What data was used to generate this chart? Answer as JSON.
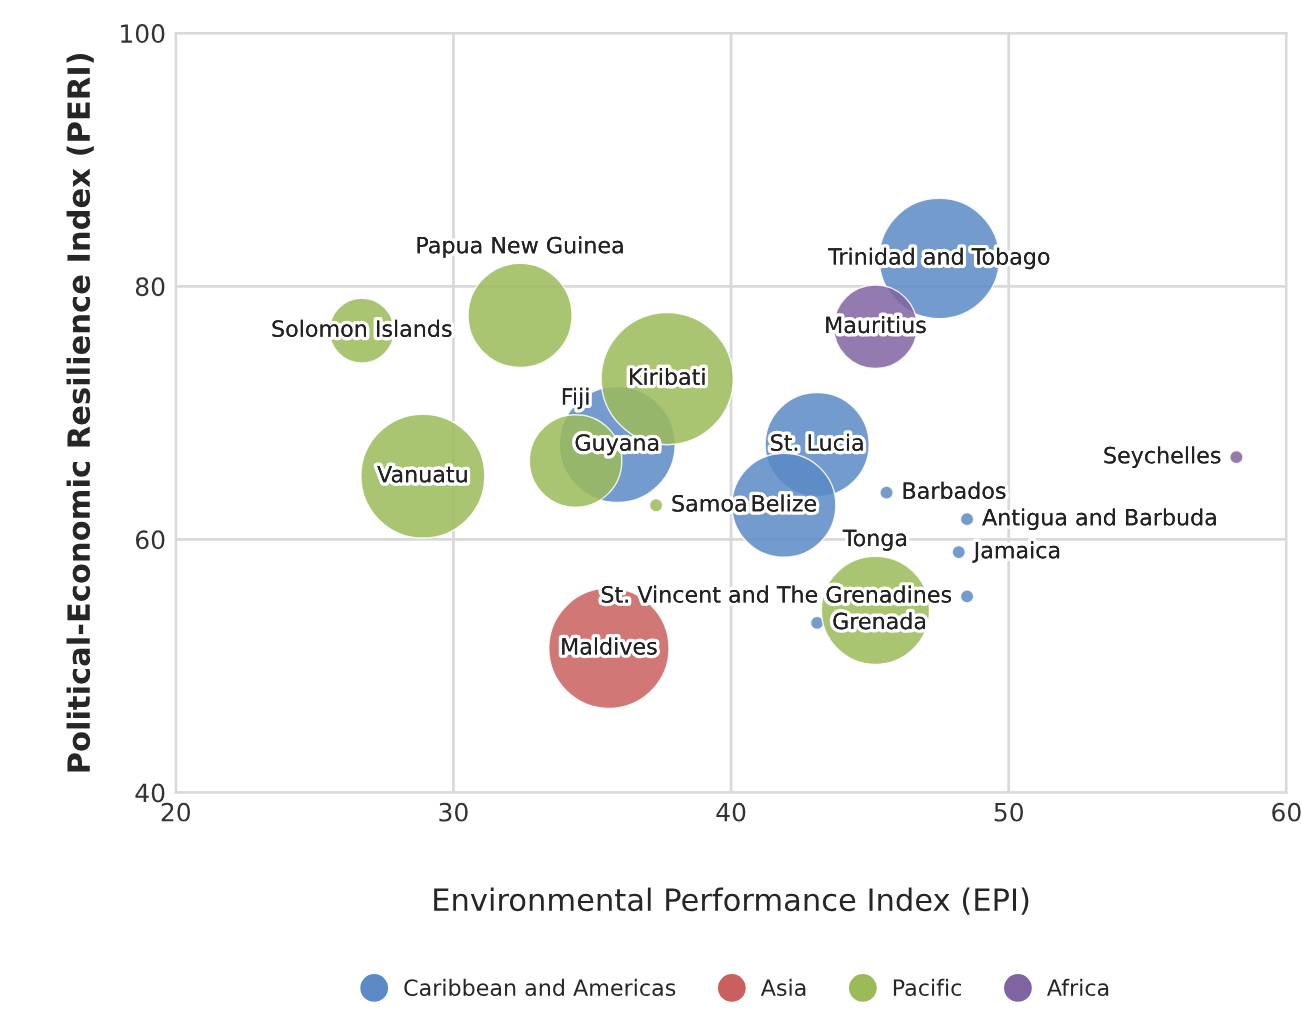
{
  "chart_data": {
    "type": "bubble",
    "xlabel": "Environmental Performance Index (EPI)",
    "ylabel": "Political-Economic Resilience Index (PERI)",
    "xlim": [
      20,
      60
    ],
    "xticks": [
      20,
      30,
      40,
      50,
      60
    ],
    "ylim": [
      40,
      100
    ],
    "yticks": [
      40,
      60,
      80,
      100
    ],
    "grid": true,
    "legend": "bottom",
    "series": [
      {
        "name": "Caribbean and Americas",
        "color": "#5b8ac6",
        "x": [
          35.9,
          47.5,
          43.1,
          41.9,
          45.6,
          48.5,
          48.2,
          48.5,
          43.1
        ],
        "values": [
          67.5,
          82.2,
          67.5,
          62.7,
          63.7,
          61.6,
          59.0,
          55.5,
          53.4
        ],
        "sizes": [
          0.77,
          0.83,
          0.62,
          0.62,
          0.01,
          0.01,
          0.01,
          0.01,
          0.01
        ]
      },
      {
        "name": "Asia",
        "color": "#c9605f",
        "x": [
          35.6
        ],
        "values": [
          51.4
        ],
        "sizes": [
          0.83
        ]
      },
      {
        "name": "Pacific",
        "color": "#9bbb59",
        "x": [
          26.7,
          32.4,
          37.7,
          34.4,
          37.3,
          28.9,
          45.2
        ],
        "values": [
          76.5,
          77.7,
          72.7,
          66.2,
          62.7,
          65.0,
          54.4
        ],
        "sizes": [
          0.24,
          0.62,
          1,
          0.49,
          0.01,
          0.88,
          0.67
        ]
      },
      {
        "name": "Africa",
        "color": "#8064a2",
        "x": [
          45.2,
          58.2
        ],
        "values": [
          76.8,
          66.5
        ],
        "sizes": [
          0.4,
          0.01
        ]
      }
    ],
    "annotations": [
      {
        "text": "Solomon Islands",
        "x": 26.7,
        "y": 76.5
      },
      {
        "text": "Papua New Guinea",
        "x": 32.4,
        "y": 77.7
      },
      {
        "text": "Kiribati",
        "x": 37.7,
        "y": 72.7
      },
      {
        "text": "Guyana",
        "x": 35.9,
        "y": 67.5
      },
      {
        "text": "Fiji",
        "x": 34.4,
        "y": 66.2
      },
      {
        "text": "Samoa",
        "x": 37.3,
        "y": 62.7
      },
      {
        "text": "Vanuatu",
        "x": 28.9,
        "y": 65.0
      },
      {
        "text": "Maldives",
        "x": 35.6,
        "y": 51.4
      },
      {
        "text": "Trinidad and Tobago",
        "x": 47.5,
        "y": 82.2
      },
      {
        "text": "Mauritius",
        "x": 45.2,
        "y": 76.8
      },
      {
        "text": "St. Lucia",
        "x": 43.1,
        "y": 67.5
      },
      {
        "text": "Belize",
        "x": 41.9,
        "y": 62.7
      },
      {
        "text": "Barbados",
        "x": 45.6,
        "y": 63.7
      },
      {
        "text": "Antigua and Barbuda",
        "x": 48.5,
        "y": 61.6
      },
      {
        "text": "Jamaica",
        "x": 48.2,
        "y": 59.0
      },
      {
        "text": "St. Vincent and The Grenadines",
        "x": 48.5,
        "y": 55.5
      },
      {
        "text": "Grenada",
        "x": 43.1,
        "y": 53.4
      },
      {
        "text": "Tonga",
        "x": 45.2,
        "y": 54.4
      },
      {
        "text": "Seychelles",
        "x": 58.2,
        "y": 66.5
      }
    ]
  }
}
